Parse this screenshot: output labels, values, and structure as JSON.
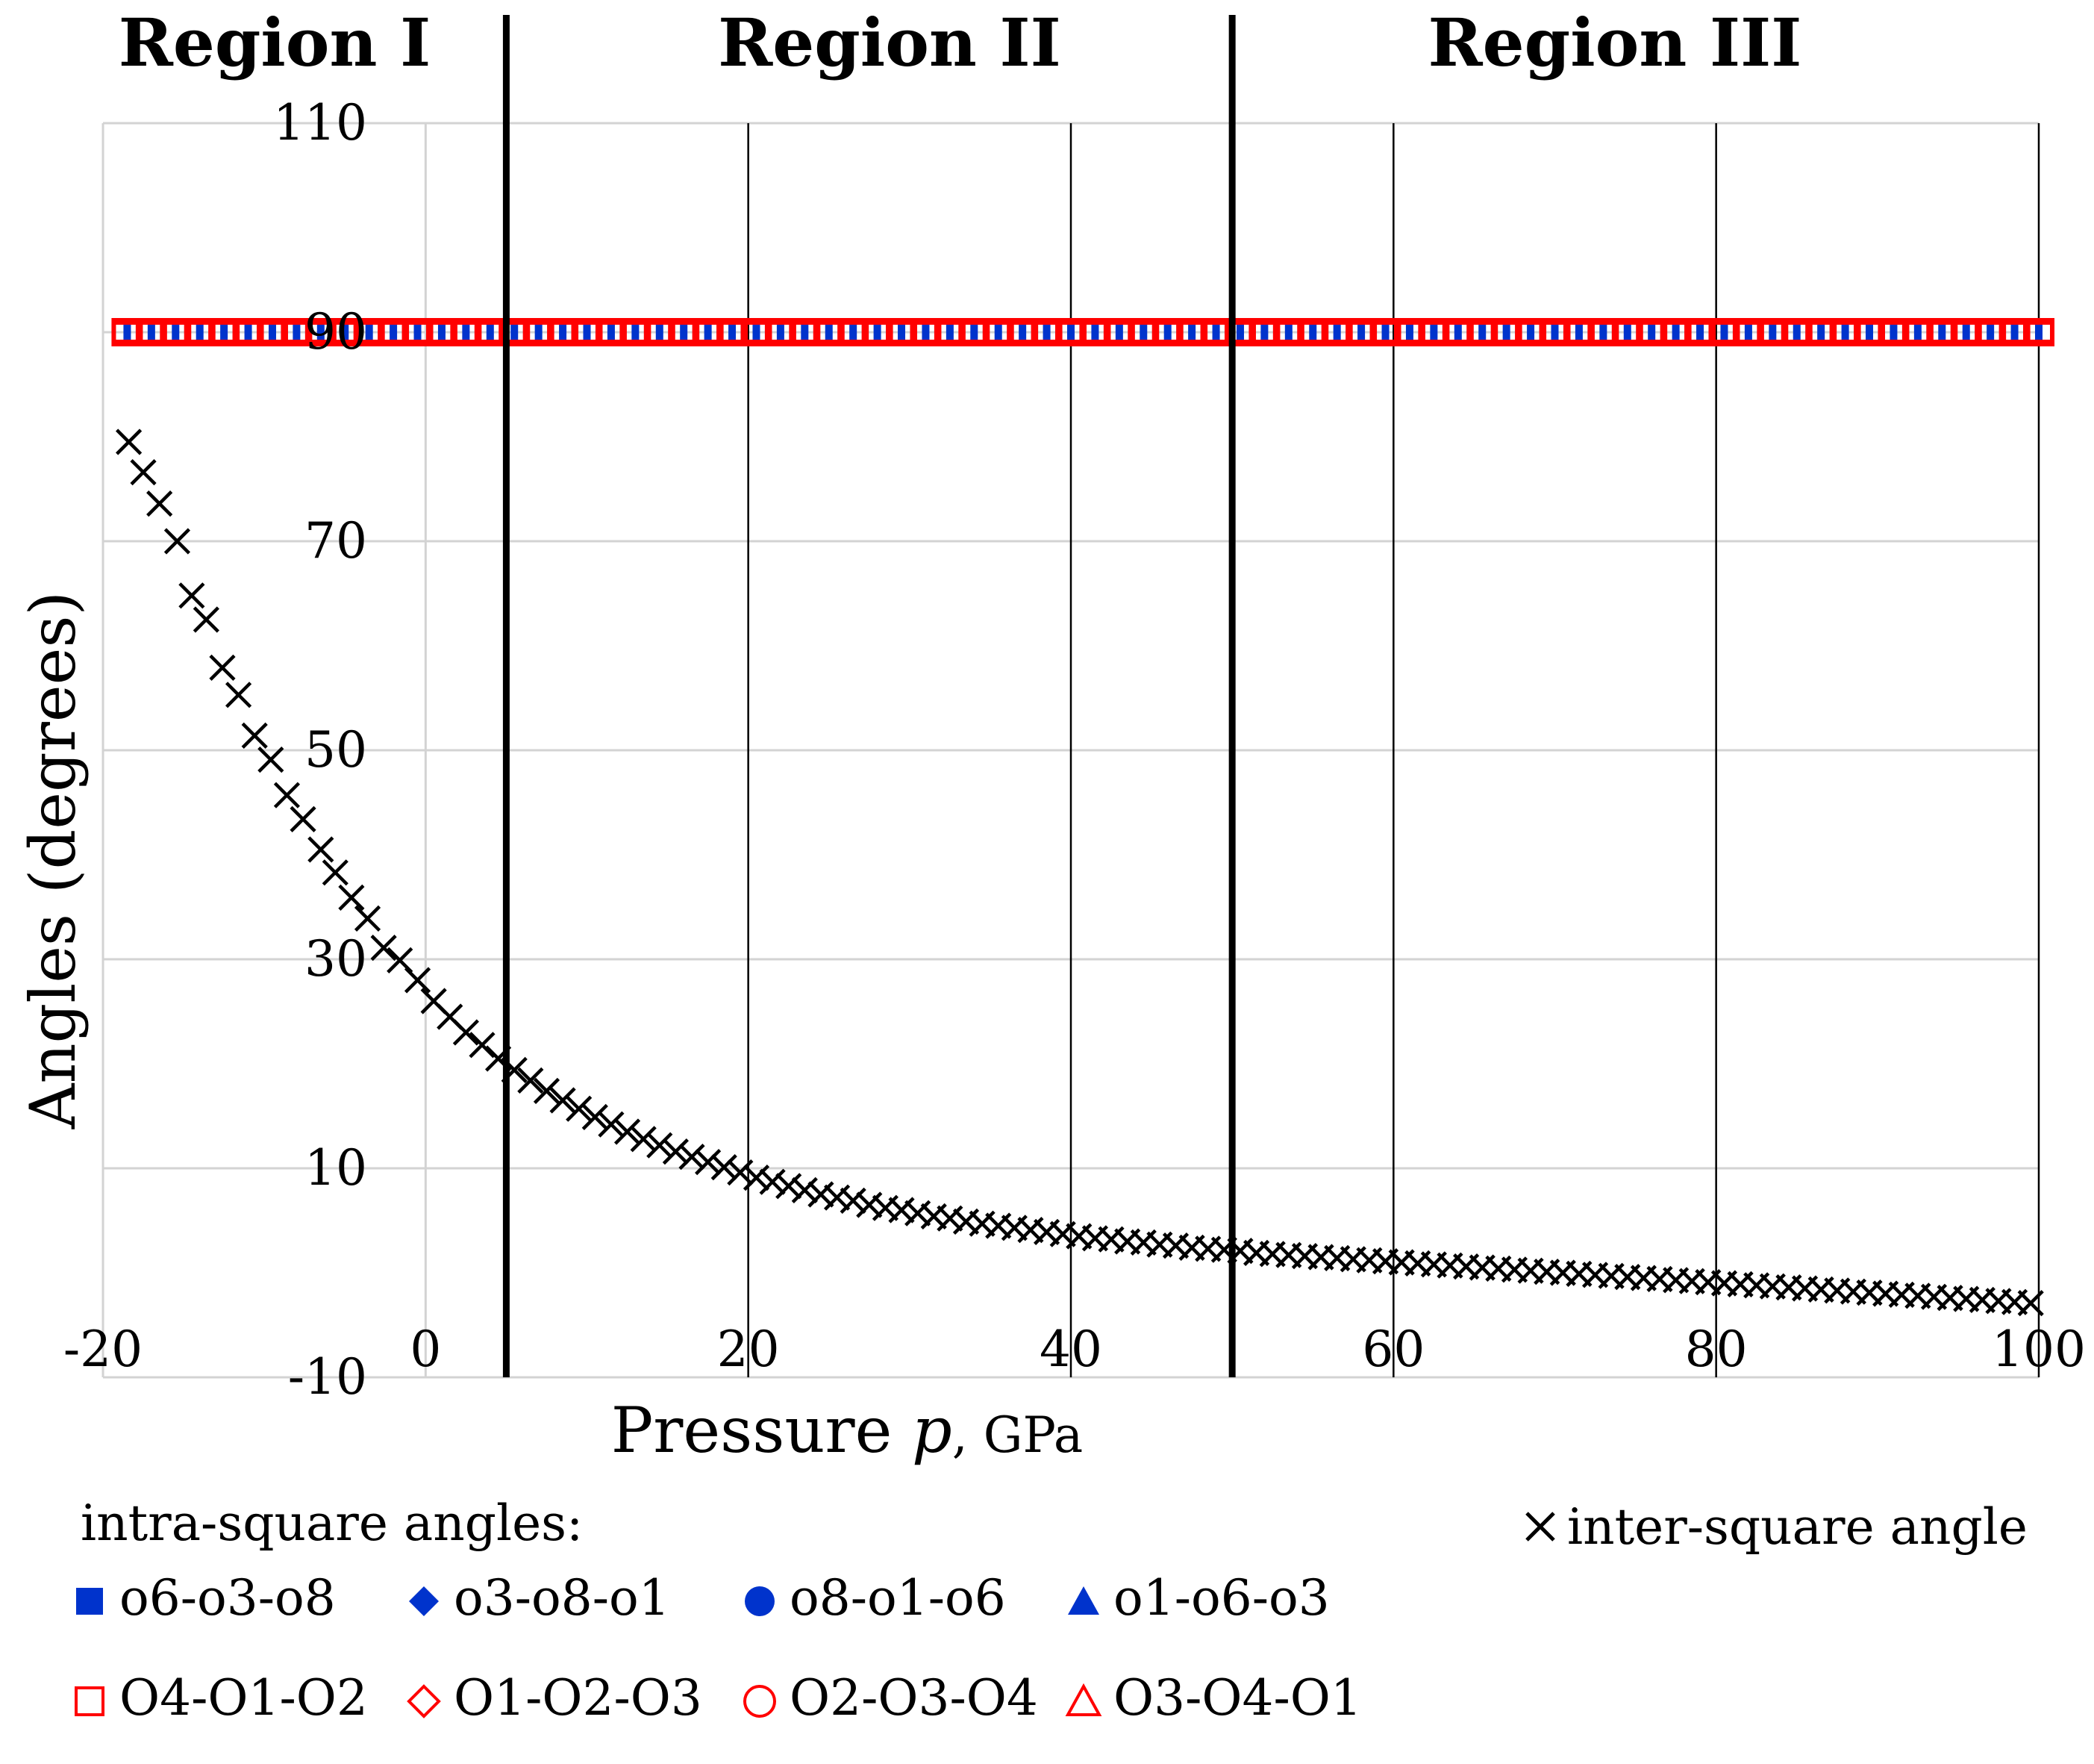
{
  "chart_data": {
    "type": "scatter",
    "xlabel_main": "Pressure ",
    "xlabel_var": "p",
    "xlabel_unit": ", GPa",
    "ylabel": "Angles (degrees)",
    "xlim": [
      -20,
      100
    ],
    "ylim": [
      -10,
      110
    ],
    "x_ticks": [
      "-20",
      "0",
      "20",
      "40",
      "60",
      "80",
      "100"
    ],
    "y_ticks": [
      "-10",
      "10",
      "30",
      "50",
      "70",
      "90",
      "110"
    ],
    "grid": true,
    "regions": [
      {
        "label": "Region I",
        "x_from": -20,
        "x_to": 5
      },
      {
        "label": "Region II",
        "x_from": 5,
        "x_to": 50
      },
      {
        "label": "Region III",
        "x_from": 50,
        "x_to": 100
      }
    ],
    "region_boundaries": [
      5,
      50
    ],
    "legend_intra_title": "intra-square angles:",
    "series": [
      {
        "name": "o6-o3-o8",
        "marker": "square-filled",
        "color": "#0033cc",
        "values_note": "constant",
        "value": 90
      },
      {
        "name": "o3-o8-o1",
        "marker": "diamond-filled",
        "color": "#0033cc",
        "value": 90
      },
      {
        "name": "o8-o1-o6",
        "marker": "circle-filled",
        "color": "#0033cc",
        "value": 90
      },
      {
        "name": "o1-o6-o3",
        "marker": "triangle-filled",
        "color": "#0033cc",
        "value": 90
      },
      {
        "name": "O4-O1-O2",
        "marker": "square-open",
        "color": "#ff0000",
        "value": 90
      },
      {
        "name": "O1-O2-O3",
        "marker": "diamond-open",
        "color": "#ff0000",
        "value": 90
      },
      {
        "name": "O2-O3-O4",
        "marker": "circle-open",
        "color": "#ff0000",
        "value": 90
      },
      {
        "name": "O3-O4-O1",
        "marker": "triangle-open",
        "color": "#ff0000",
        "value": 90
      }
    ],
    "intra_x": [
      -18.5,
      -17,
      -15.5,
      -14,
      -12.5,
      -11,
      -9.5,
      -8,
      -6.5,
      -5,
      -3.5,
      -2,
      -0.5,
      1,
      2.5,
      4,
      5.5,
      7,
      8.5,
      10,
      11.5,
      13,
      14.5,
      16,
      17.5,
      19,
      20.5,
      22,
      23.5,
      25,
      26.5,
      28,
      29.5,
      31,
      32.5,
      34,
      35.5,
      37,
      38.5,
      40,
      41.5,
      43,
      44.5,
      46,
      47.5,
      49,
      50.5,
      52,
      53.5,
      55,
      56.5,
      58,
      59.5,
      61,
      62.5,
      64,
      65.5,
      67,
      68.5,
      70,
      71.5,
      73,
      74.5,
      76,
      77.5,
      79,
      80.5,
      82,
      83.5,
      85,
      86.5,
      88,
      89.5,
      91,
      92.5,
      94,
      95.5,
      97,
      98.5,
      100
    ],
    "inter_series": {
      "name": "inter-square angle",
      "marker": "x",
      "color": "#000000",
      "x": [
        -18.4,
        -17.5,
        -16.5,
        -15.4,
        -14.5,
        -13.6,
        -12.6,
        -11.6,
        -10.6,
        -9.6,
        -8.6,
        -7.6,
        -6.5,
        -5.6,
        -4.6,
        -3.6,
        -2.6,
        -1.6,
        -0.5,
        0.5,
        1.5,
        2.5,
        3.5,
        4.5,
        5.5,
        6.5,
        7.5,
        8.5,
        9.5,
        10.5,
        11.5,
        12.5,
        13.5,
        14.5,
        15.5,
        16.5,
        17.5,
        18.5,
        19.5,
        20.5,
        21.5,
        22.5,
        23.5,
        24.5,
        25.5,
        26.5,
        27.5,
        28.5,
        29.5,
        30.5,
        31.5,
        32.5,
        33.5,
        34.5,
        35.5,
        36.5,
        37.5,
        38.5,
        39.5,
        40.5,
        41.5,
        42.5,
        43.5,
        44.5,
        45.5,
        46.5,
        47.5,
        48.5,
        49.5,
        50.5,
        51.5,
        52.5,
        53.5,
        54.5,
        55.5,
        56.5,
        57.5,
        58.5,
        59.5,
        60.5,
        61.5,
        62.5,
        63.5,
        64.5,
        65.5,
        66.5,
        67.5,
        68.5,
        69.5,
        70.5,
        71.5,
        72.5,
        73.5,
        74.5,
        75.5,
        76.5,
        77.5,
        78.5,
        79.5,
        80.5,
        81.5,
        82.5,
        83.5,
        84.5,
        85.5,
        86.5,
        87.5,
        88.5,
        89.5,
        90.5,
        91.5,
        92.5,
        93.5,
        94.5,
        95.5,
        96.5,
        97.5,
        98.5,
        99.5
      ],
      "y": [
        79.5,
        76.6,
        73.6,
        70.0,
        64.8,
        62.5,
        57.9,
        55.3,
        51.4,
        49.1,
        45.7,
        43.4,
        40.5,
        38.3,
        35.9,
        33.9,
        31.1,
        29.9,
        28.0,
        26.0,
        24.5,
        23.0,
        21.8,
        20.5,
        19.4,
        18.4,
        17.4,
        16.5,
        15.7,
        14.9,
        14.2,
        13.5,
        12.8,
        12.2,
        11.6,
        11.1,
        10.6,
        10.1,
        9.6,
        9.1,
        8.7,
        8.3,
        7.9,
        7.5,
        7.2,
        6.9,
        6.5,
        6.2,
        6.0,
        5.7,
        5.4,
        5.2,
        4.9,
        4.7,
        4.5,
        4.3,
        4.1,
        3.9,
        3.7,
        3.5,
        3.3,
        3.2,
        3.0,
        2.9,
        2.7,
        2.6,
        2.4,
        2.3,
        2.2,
        2.1,
        1.9,
        1.8,
        1.7,
        1.6,
        1.5,
        1.4,
        1.3,
        1.2,
        1.1,
        1.0,
        0.9,
        0.8,
        0.7,
        0.6,
        0.5,
        0.4,
        0.3,
        0.2,
        0.1,
        0.0,
        -0.1,
        -0.2,
        -0.3,
        -0.4,
        -0.5,
        -0.6,
        -0.7,
        -0.8,
        -0.9,
        -1.0,
        -1.1,
        -1.2,
        -1.3,
        -1.4,
        -1.5,
        -1.6,
        -1.7,
        -1.8,
        -1.9,
        -2.0,
        -2.1,
        -2.2,
        -2.3,
        -2.4,
        -2.5,
        -2.6,
        -2.7,
        -2.8,
        -2.9
      ]
    }
  }
}
